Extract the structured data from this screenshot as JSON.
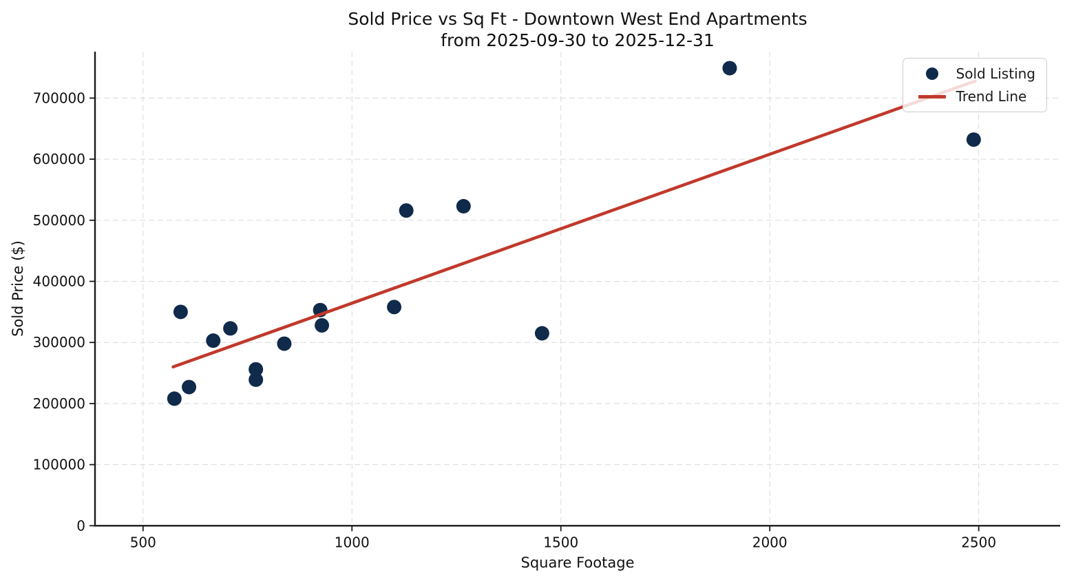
{
  "colors": {
    "point": "#0f2a4a",
    "trend": "#c0392b",
    "grid": "#d9d9d9",
    "spine": "#1a1a1a",
    "tick_text": "#111111"
  },
  "chart_data": {
    "type": "scatter",
    "title": "Sold Price vs Sq Ft - Downtown West End Apartments",
    "subtitle": "from 2025-09-30 to 2025-12-31",
    "xlabel": "Square Footage",
    "ylabel": "Sold Price ($)",
    "x_ticks": [
      500,
      1000,
      1500,
      2000,
      2500
    ],
    "y_ticks": [
      0,
      100000,
      200000,
      300000,
      400000,
      500000,
      600000,
      700000
    ],
    "xlim": [
      385,
      2695
    ],
    "ylim": [
      0,
      776000
    ],
    "grid": true,
    "grid_style": "dashed",
    "legend": {
      "position": "upper right",
      "entries": [
        {
          "label": "Sold Listing",
          "marker": "circle",
          "color": "#0f2a4a"
        },
        {
          "label": "Trend Line",
          "marker": "line",
          "color": "#c0392b"
        }
      ]
    },
    "series": [
      {
        "name": "Sold Listing",
        "type": "scatter",
        "color": "#0f2a4a",
        "points": [
          [
            575,
            208000
          ],
          [
            590,
            350000
          ],
          [
            610,
            227000
          ],
          [
            668,
            303000
          ],
          [
            709,
            323000
          ],
          [
            770,
            256000
          ],
          [
            770,
            239000
          ],
          [
            838,
            298000
          ],
          [
            924,
            353000
          ],
          [
            928,
            328000
          ],
          [
            1101,
            358000
          ],
          [
            1130,
            516000
          ],
          [
            1267,
            523000
          ],
          [
            1455,
            315000
          ],
          [
            1904,
            749000
          ],
          [
            2488,
            632000
          ]
        ]
      },
      {
        "name": "Trend Line",
        "type": "line",
        "color": "#c0392b",
        "points": [
          [
            572,
            260000
          ],
          [
            2492,
            728000
          ]
        ]
      }
    ]
  }
}
